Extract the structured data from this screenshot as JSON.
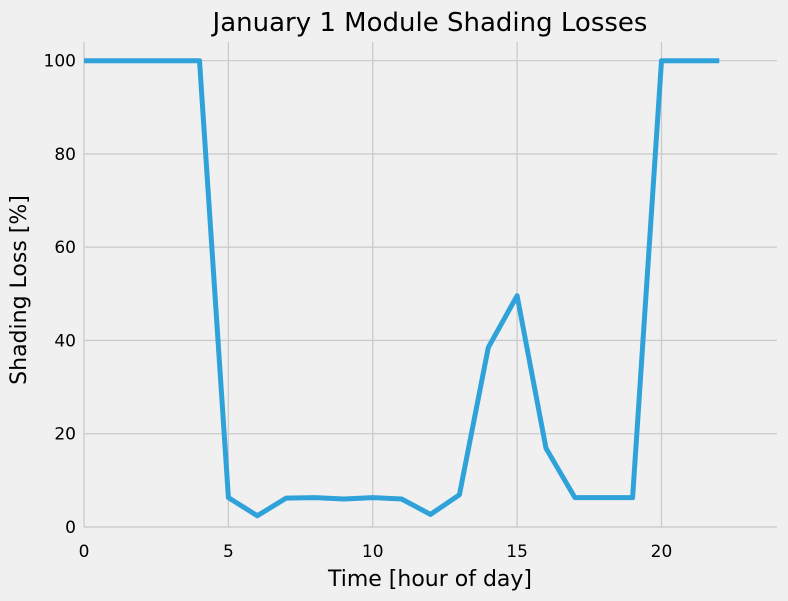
{
  "chart_data": {
    "type": "line",
    "title": "January 1 Module Shading Losses",
    "xlabel": "Time [hour of day]",
    "ylabel": "Shading Loss [%]",
    "xlim": [
      0,
      24
    ],
    "ylim": [
      0,
      104
    ],
    "xticks": [
      0,
      5,
      10,
      15,
      20
    ],
    "yticks": [
      0,
      20,
      40,
      60,
      80,
      100
    ],
    "grid": true,
    "series": [
      {
        "color": "#30a2da",
        "x": [
          0,
          1,
          2,
          3,
          4,
          5,
          6,
          7,
          8,
          9,
          10,
          11,
          12,
          13,
          14,
          15,
          16,
          17,
          18,
          19,
          20,
          21,
          22
        ],
        "y": [
          100,
          100,
          100,
          100,
          100,
          6.3,
          2.4,
          6.2,
          6.3,
          6.0,
          6.3,
          6.0,
          2.7,
          6.9,
          38.5,
          49.6,
          16.9,
          6.3,
          6.3,
          6.3,
          100,
          100,
          100
        ]
      }
    ]
  }
}
